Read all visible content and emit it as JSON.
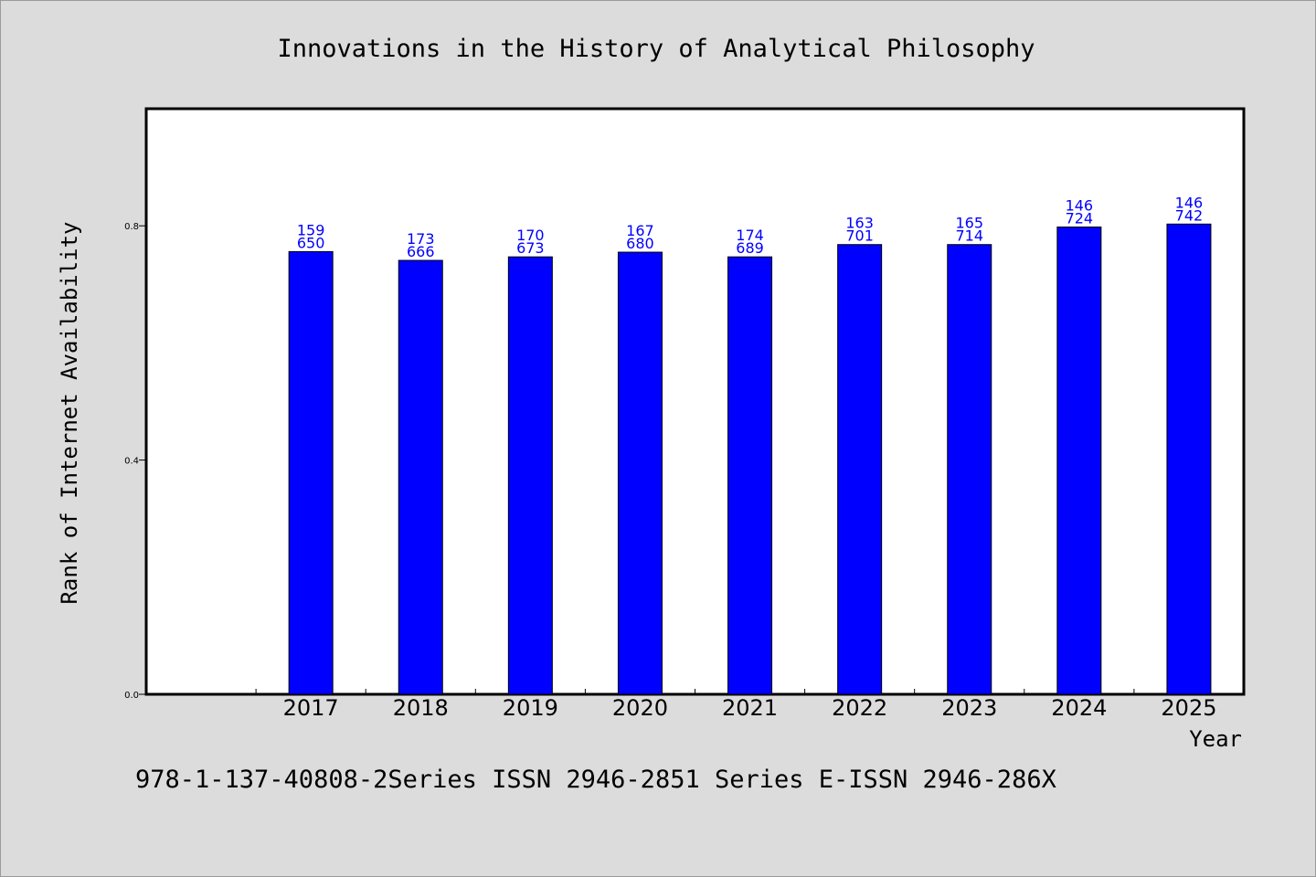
{
  "chart_data": {
    "type": "bar",
    "title": "Innovations in the History of Analytical Philosophy",
    "xlabel": "Year",
    "ylabel": "Rank of Internet Availability",
    "categories": [
      "2017",
      "2018",
      "2019",
      "2020",
      "2021",
      "2022",
      "2023",
      "2024",
      "2025"
    ],
    "values": [
      0.756,
      0.741,
      0.747,
      0.755,
      0.747,
      0.768,
      0.768,
      0.798,
      0.803
    ],
    "data_labels": [
      [
        "159",
        "650"
      ],
      [
        "173",
        "666"
      ],
      [
        "170",
        "673"
      ],
      [
        "167",
        "680"
      ],
      [
        "174",
        "689"
      ],
      [
        "163",
        "701"
      ],
      [
        "165",
        "714"
      ],
      [
        "146",
        "724"
      ],
      [
        "146",
        "742"
      ]
    ],
    "yticks": [
      "0.0",
      "0.4",
      "0.8"
    ],
    "ytick_values": [
      0.0,
      0.4,
      0.8
    ],
    "ylim": [
      0,
      1.0
    ],
    "bar_color": "#0000ff",
    "plot_background": "#ffffff",
    "page_background": "#dcdcdc",
    "grid": false,
    "legend": "none"
  },
  "footer": {
    "text": "978-1-137-40808-2Series ISSN 2946-2851 Series E-ISSN 2946-286X"
  }
}
